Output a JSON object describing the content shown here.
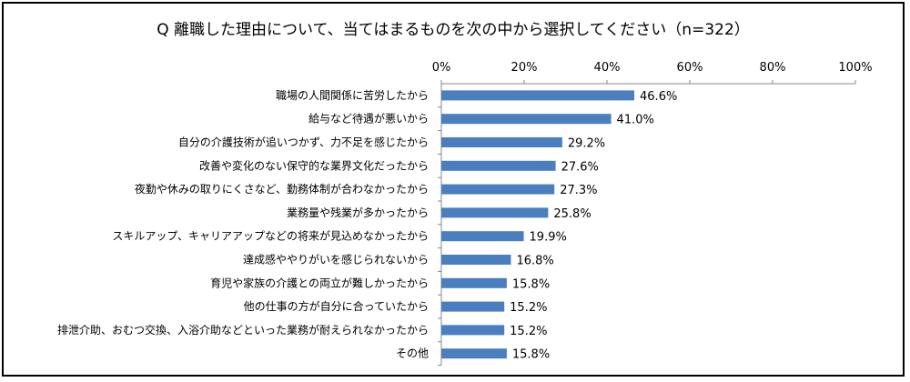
{
  "chart_data": {
    "type": "bar",
    "orientation": "horizontal",
    "title": "Q 離職した理由について、当てはまるものを次の中から選択してください（n=322）",
    "xlabel": "",
    "ylabel": "",
    "xlim": [
      0,
      100
    ],
    "ticks": [
      "0%",
      "20%",
      "40%",
      "60%",
      "80%",
      "100%"
    ],
    "tick_values": [
      0,
      20,
      40,
      60,
      80,
      100
    ],
    "grid": false,
    "bar_color": "#4a7ebf",
    "categories": [
      "職場の人間関係に苦労したから",
      "給与など待遇が悪いから",
      "自分の介護技術が追いつかず、力不足を感じたから",
      "改善や変化のない保守的な業界文化だったから",
      "夜勤や休みの取りにくさなど、勤務体制が合わなかったから",
      "業務量や残業が多かったから",
      "スキルアップ、キャリアアップなどの将来が見込めなかったから",
      "達成感ややりがいを感じられないから",
      "育児や家族の介護との両立が難しかったから",
      "他の仕事の方が自分に合っていたから",
      "排泄介助、おむつ交換、入浴介助などといった業務が耐えられなかったから",
      "その他"
    ],
    "values": [
      46.6,
      41.0,
      29.2,
      27.6,
      27.3,
      25.8,
      19.9,
      16.8,
      15.8,
      15.2,
      15.2,
      15.8
    ],
    "data_labels": [
      "46.6%",
      "41.0%",
      "29.2%",
      "27.6%",
      "27.3%",
      "25.8%",
      "19.9%",
      "16.8%",
      "15.8%",
      "15.2%",
      "15.2%",
      "15.8%"
    ]
  }
}
